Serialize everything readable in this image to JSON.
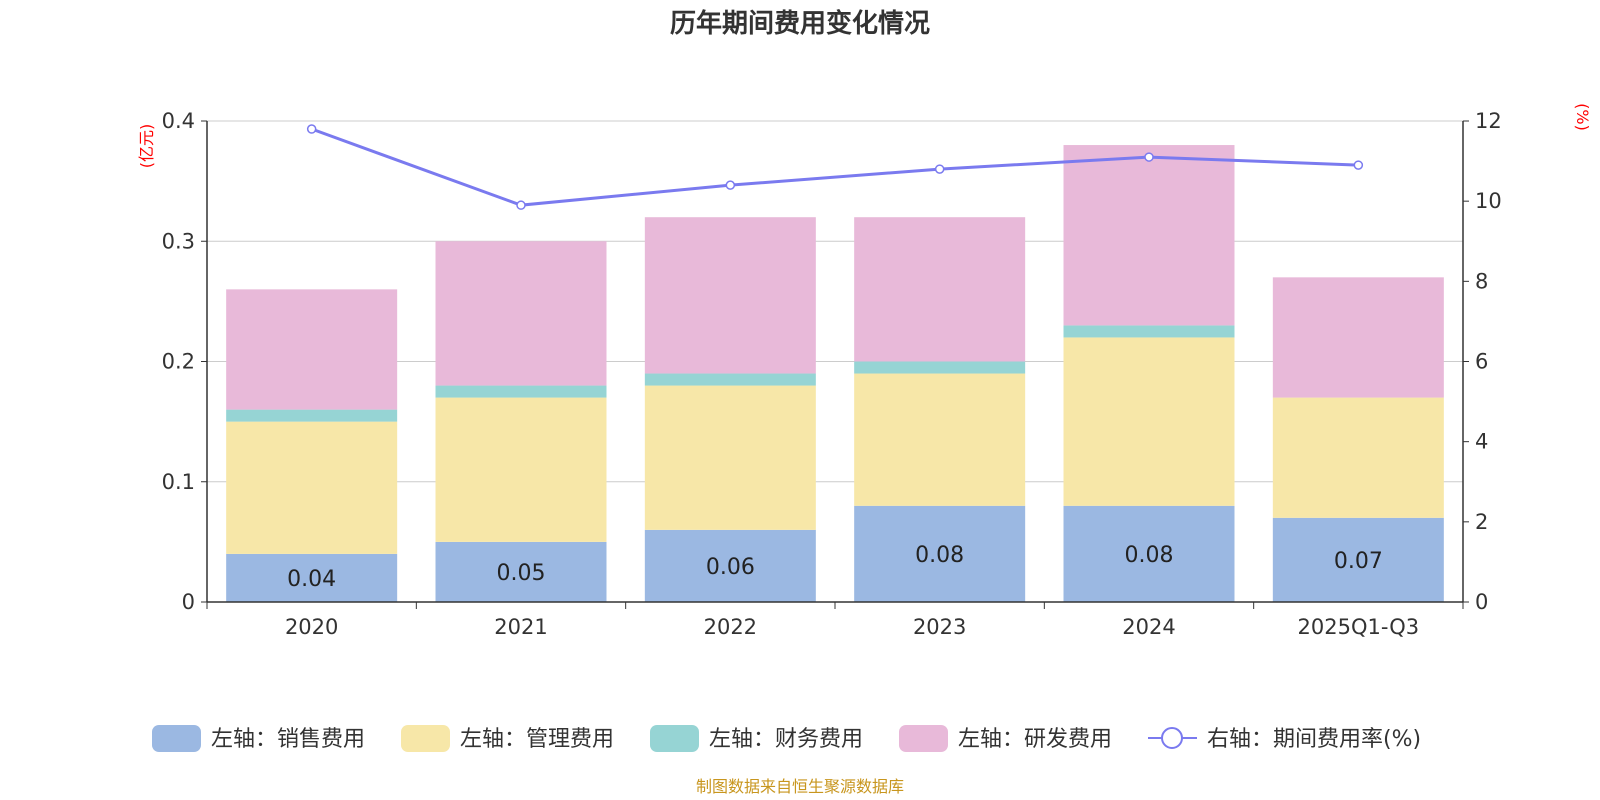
{
  "title": "历年期间费用变化情况",
  "source": "制图数据来自恒生聚源数据库",
  "chart_data": {
    "type": "bar",
    "stacked": true,
    "categories": [
      "2020",
      "2021",
      "2022",
      "2023",
      "2024",
      "2025Q1-Q3"
    ],
    "series": [
      {
        "name": "左轴：销售费用",
        "axis": "left",
        "color": "#9bb8e2",
        "values": [
          0.04,
          0.05,
          0.06,
          0.08,
          0.08,
          0.07
        ],
        "labels": [
          "0.04",
          "0.05",
          "0.06",
          "0.08",
          "0.08",
          "0.07"
        ]
      },
      {
        "name": "左轴：管理费用",
        "axis": "left",
        "color": "#f7e7a8",
        "values": [
          0.11,
          0.12,
          0.12,
          0.11,
          0.14,
          0.1
        ]
      },
      {
        "name": "左轴：财务费用",
        "axis": "left",
        "color": "#96d4d4",
        "values": [
          0.01,
          0.01,
          0.01,
          0.01,
          0.01,
          0.0
        ]
      },
      {
        "name": "左轴：研发费用",
        "axis": "left",
        "color": "#e8b9d9",
        "values": [
          0.1,
          0.12,
          0.13,
          0.12,
          0.15,
          0.1
        ]
      }
    ],
    "line": {
      "name": "右轴：期间费用率(%)",
      "axis": "right",
      "color": "#7a7aef",
      "values": [
        11.8,
        9.9,
        10.4,
        10.8,
        11.1,
        10.9
      ]
    },
    "yLeft": {
      "unit": "(亿元)",
      "min": 0,
      "max": 0.4,
      "ticks": [
        "0",
        "0.1",
        "0.2",
        "0.3",
        "0.4"
      ],
      "tickValues": [
        0,
        0.1,
        0.2,
        0.3,
        0.4
      ]
    },
    "yRight": {
      "unit": "(%)",
      "min": 0,
      "max": 12,
      "ticks": [
        "0",
        "2",
        "4",
        "6",
        "8",
        "10",
        "12"
      ],
      "tickValues": [
        0,
        2,
        4,
        6,
        8,
        10,
        12
      ]
    },
    "legend_position": "bottom"
  }
}
